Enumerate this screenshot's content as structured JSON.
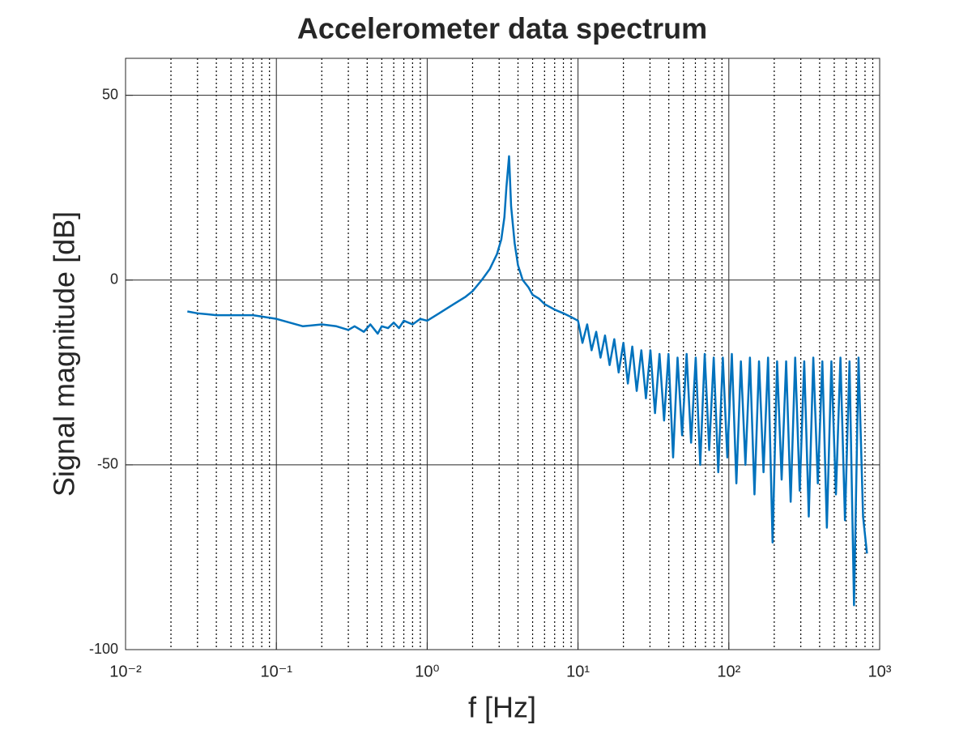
{
  "chart_data": {
    "type": "line",
    "title": "Accelerometer data spectrum",
    "x_label": "f [Hz]",
    "y_label": "Signal magnitude [dB]",
    "x_scale": "log",
    "grid": true,
    "minor_grid": true,
    "color": "#0072bd",
    "xlim": [
      0.01,
      1000
    ],
    "ylim": [
      -100,
      60
    ],
    "xticks": [
      {
        "value": 0.01,
        "label": "10⁻²"
      },
      {
        "value": 0.1,
        "label": "10⁻¹"
      },
      {
        "value": 1,
        "label": "10⁰"
      },
      {
        "value": 10,
        "label": "10¹"
      },
      {
        "value": 100,
        "label": "10²"
      },
      {
        "value": 1000,
        "label": "10³"
      }
    ],
    "xminorticks": [
      0.02,
      0.03,
      0.04,
      0.05,
      0.06,
      0.07,
      0.08,
      0.09,
      0.2,
      0.3,
      0.4,
      0.5,
      0.6,
      0.7,
      0.8,
      0.9,
      2,
      3,
      4,
      5,
      6,
      7,
      8,
      9,
      20,
      30,
      40,
      50,
      60,
      70,
      80,
      90,
      200,
      300,
      400,
      500,
      600,
      700,
      800,
      900
    ],
    "yticks": [
      -100,
      -50,
      0,
      50
    ],
    "x": [
      0.0257,
      0.03,
      0.04,
      0.05,
      0.07,
      0.1,
      0.15,
      0.2,
      0.25,
      0.3,
      0.33,
      0.38,
      0.42,
      0.47,
      0.5,
      0.55,
      0.6,
      0.65,
      0.7,
      0.8,
      0.9,
      1,
      1.2,
      1.5,
      1.8,
      2,
      2.3,
      2.6,
      2.9,
      3.1,
      3.25,
      3.35,
      3.49,
      3.6,
      3.8,
      4,
      4.3,
      4.7,
      5,
      5.5,
      6,
      7,
      8,
      9,
      10,
      10.7,
      11.5,
      12.3,
      13.2,
      14.1,
      15.1,
      16.2,
      17.4,
      18.6,
      20,
      21.4,
      22.9,
      24.5,
      26.3,
      28.2,
      30.2,
      32.4,
      34.7,
      37.2,
      39.8,
      42.7,
      45.7,
      49,
      52.5,
      56.2,
      60.3,
      64.6,
      69.2,
      74.1,
      79.4,
      85.1,
      91.2,
      97.7,
      104.7,
      112.2,
      120.2,
      128.8,
      138,
      147.9,
      158.5,
      169.8,
      182,
      195,
      208.9,
      223.9,
      239.9,
      257,
      275.4,
      295.1,
      316.2,
      338.8,
      363.1,
      389,
      416.9,
      446.7,
      478.6,
      512.9,
      549.5,
      588.8,
      631,
      676.1,
      724.4,
      776.2,
      824
    ],
    "values": [
      -8.5,
      -9,
      -9.5,
      -9.5,
      -9.5,
      -10.5,
      -12.5,
      -12,
      -12.5,
      -13.5,
      -12.5,
      -14,
      -12,
      -14.5,
      -12.5,
      -13,
      -11.5,
      -13,
      -11,
      -12,
      -10.5,
      -11,
      -9,
      -6.5,
      -4.5,
      -3,
      0,
      3,
      7,
      11,
      17,
      25,
      33.5,
      20,
      10,
      4,
      0,
      -2,
      -4,
      -5,
      -6.5,
      -8,
      -9,
      -10,
      -11,
      -17,
      -12,
      -19,
      -14,
      -21,
      -15,
      -23,
      -16,
      -25,
      -17,
      -28,
      -18,
      -30,
      -19,
      -32,
      -19,
      -36,
      -20,
      -38,
      -20,
      -48,
      -21,
      -42,
      -20,
      -44,
      -21,
      -50,
      -20,
      -46,
      -21,
      -52,
      -21,
      -48,
      -20,
      -55,
      -22,
      -50,
      -21,
      -58,
      -22,
      -52,
      -21,
      -71,
      -22,
      -54,
      -22,
      -60,
      -21,
      -57,
      -22,
      -64,
      -21,
      -55,
      -22,
      -67,
      -22,
      -58,
      -21,
      -65,
      -22,
      -88,
      -21,
      -64,
      -74
    ]
  }
}
